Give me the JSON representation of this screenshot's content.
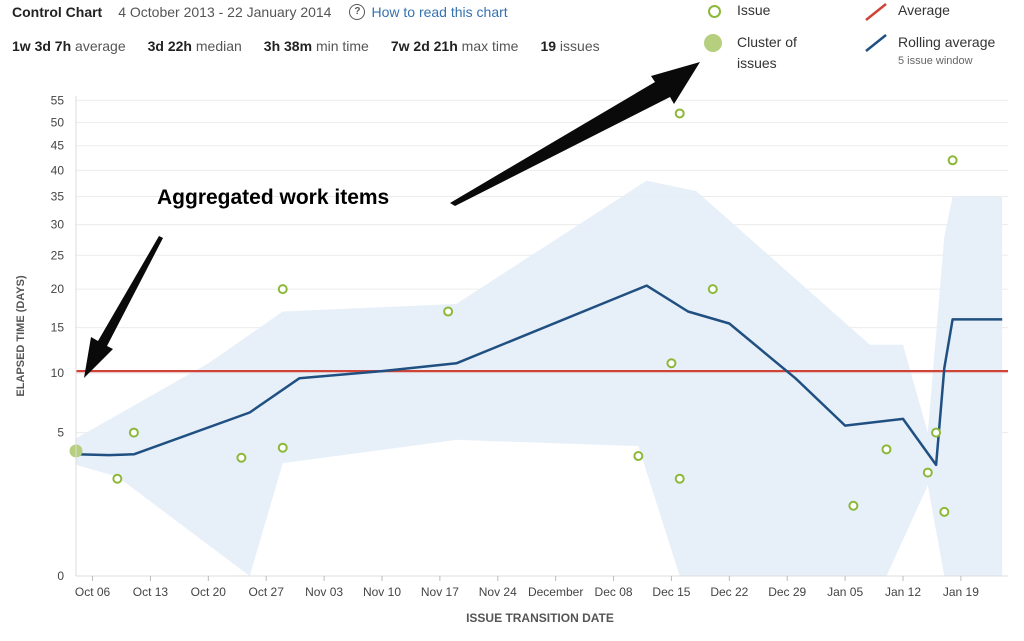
{
  "header": {
    "title": "Control Chart",
    "date_range": "4 October 2013 - 22 January 2014",
    "help_link": "How to read this chart",
    "help_icon": "?"
  },
  "stats": [
    {
      "value": "1w 3d 7h",
      "label": "average"
    },
    {
      "value": "3d 22h",
      "label": "median"
    },
    {
      "value": "3h 38m",
      "label": "min time"
    },
    {
      "value": "7w 2d 21h",
      "label": "max time"
    },
    {
      "value": "19",
      "label": "issues"
    }
  ],
  "legend": {
    "issue": "Issue",
    "cluster_line1": "Cluster of",
    "cluster_line2": "issues",
    "average": "Average",
    "rolling": "Rolling average",
    "rolling_sub": "5 issue window"
  },
  "annotations": {
    "aggregated": "Aggregated work items"
  },
  "colors": {
    "issue": "#8cb83a",
    "cluster": "#b6cf7e",
    "average": "#d04437",
    "rolling": "#205081",
    "band": "#e4eef8"
  },
  "chart_data": {
    "type": "scatter",
    "xlabel": "ISSUE TRANSITION DATE",
    "ylabel": "ELAPSED TIME (DAYS)",
    "y_ticks": [
      "0",
      "5",
      "10",
      "15",
      "20",
      "25",
      "30",
      "35",
      "40",
      "45",
      "50",
      "55"
    ],
    "x_ticks": [
      "Oct 06",
      "Oct 13",
      "Oct 20",
      "Oct 27",
      "Nov 03",
      "Nov 10",
      "Nov 17",
      "Nov 24",
      "December",
      "Dec 08",
      "Dec 15",
      "Dec 22",
      "Dec 29",
      "Jan 05",
      "Jan 12",
      "Jan 19"
    ],
    "average": 10.2,
    "issues": [
      {
        "date": "2013-10-11",
        "days": 5
      },
      {
        "date": "2013-10-09",
        "days": 2.3
      },
      {
        "date": "2013-10-24",
        "days": 3.4
      },
      {
        "date": "2013-10-29",
        "days": 20
      },
      {
        "date": "2013-10-29",
        "days": 4
      },
      {
        "date": "2013-11-18",
        "days": 17
      },
      {
        "date": "2013-12-11",
        "days": 3.5
      },
      {
        "date": "2013-12-15",
        "days": 11
      },
      {
        "date": "2013-12-16",
        "days": 52
      },
      {
        "date": "2013-12-16",
        "days": 2.3
      },
      {
        "date": "2013-12-20",
        "days": 20
      },
      {
        "date": "2014-01-06",
        "days": 1.2
      },
      {
        "date": "2014-01-10",
        "days": 3.9
      },
      {
        "date": "2014-01-15",
        "days": 2.6
      },
      {
        "date": "2014-01-16",
        "days": 5
      },
      {
        "date": "2014-01-17",
        "days": 1
      },
      {
        "date": "2014-01-18",
        "days": 42
      }
    ],
    "clusters": [
      {
        "date": "2013-10-04",
        "days": 3.8
      }
    ],
    "rolling_average": [
      {
        "date": "2013-10-04",
        "days": 3.6
      },
      {
        "date": "2013-10-08",
        "days": 3.55
      },
      {
        "date": "2013-10-11",
        "days": 3.6
      },
      {
        "date": "2013-10-25",
        "days": 6.5
      },
      {
        "date": "2013-10-31",
        "days": 9.5
      },
      {
        "date": "2013-11-10",
        "days": 10.2
      },
      {
        "date": "2013-11-19",
        "days": 11
      },
      {
        "date": "2013-12-12",
        "days": 20.5
      },
      {
        "date": "2013-12-17",
        "days": 17
      },
      {
        "date": "2013-12-22",
        "days": 15.5
      },
      {
        "date": "2013-12-30",
        "days": 9.5
      },
      {
        "date": "2014-01-05",
        "days": 5.5
      },
      {
        "date": "2014-01-12",
        "days": 6
      },
      {
        "date": "2014-01-16",
        "days": 3
      },
      {
        "date": "2014-01-17",
        "days": 10.5
      },
      {
        "date": "2014-01-18",
        "days": 16
      },
      {
        "date": "2014-01-24",
        "days": 16
      }
    ],
    "band": {
      "upper": [
        {
          "date": "2013-10-04",
          "days": 4.6
        },
        {
          "date": "2013-10-20",
          "days": 11
        },
        {
          "date": "2013-10-29",
          "days": 17
        },
        {
          "date": "2013-11-19",
          "days": 18
        },
        {
          "date": "2013-12-12",
          "days": 38
        },
        {
          "date": "2013-12-18",
          "days": 36
        },
        {
          "date": "2014-01-08",
          "days": 13
        },
        {
          "date": "2014-01-12",
          "days": 13
        },
        {
          "date": "2014-01-15",
          "days": 5
        },
        {
          "date": "2014-01-17",
          "days": 28
        },
        {
          "date": "2014-01-18",
          "days": 35
        },
        {
          "date": "2014-01-24",
          "days": 35
        }
      ],
      "lower": [
        {
          "date": "2014-01-24",
          "days": 0
        },
        {
          "date": "2014-01-17",
          "days": 0
        },
        {
          "date": "2014-01-15",
          "days": 2
        },
        {
          "date": "2014-01-10",
          "days": 0
        },
        {
          "date": "2013-12-16",
          "days": 0
        },
        {
          "date": "2013-12-11",
          "days": 4.1
        },
        {
          "date": "2013-11-19",
          "days": 4.5
        },
        {
          "date": "2013-10-29",
          "days": 3.1
        },
        {
          "date": "2013-10-25",
          "days": 0
        },
        {
          "date": "2013-10-09",
          "days": 2.4
        },
        {
          "date": "2013-10-04",
          "days": 3
        }
      ]
    }
  }
}
